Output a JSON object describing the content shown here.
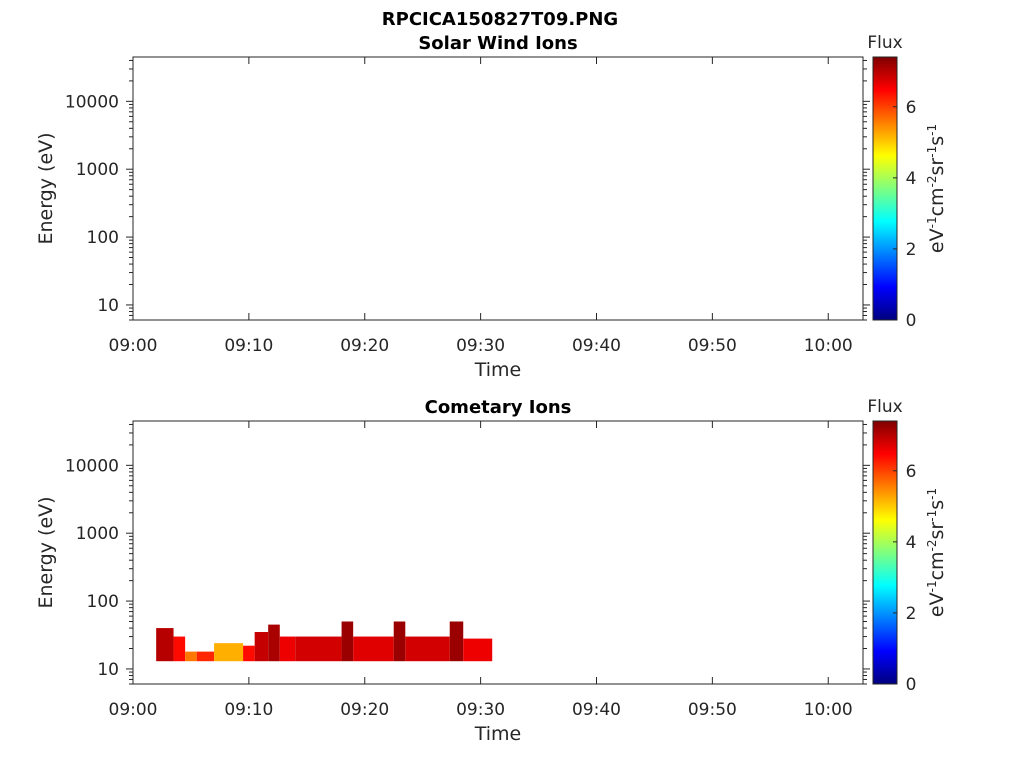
{
  "figure": {
    "title": "RPCICA150827T09.PNG"
  },
  "colormap": {
    "name": "jet",
    "stops": [
      "#00007f",
      "#0000ff",
      "#007fff",
      "#00ffff",
      "#7fff7f",
      "#ffff00",
      "#ff7f00",
      "#ff0000",
      "#7f0000"
    ]
  },
  "chart_data": [
    {
      "type": "heatmap",
      "title": "Solar Wind Ions",
      "xlabel": "Time",
      "ylabel": "Energy (eV)",
      "xticks": [
        "09:00",
        "09:10",
        "09:20",
        "09:30",
        "09:40",
        "09:50",
        "10:00"
      ],
      "xlim": [
        "09:00",
        "10:03"
      ],
      "yscale": "log",
      "ylim": [
        6,
        45000
      ],
      "yticks": [
        10,
        100,
        1000,
        10000
      ],
      "ytick_labels": [
        "10",
        "100",
        "1000",
        "10000"
      ],
      "colorbar": {
        "title": "Flux",
        "label": "eV-1cm-2sr-1s-1",
        "range": [
          0,
          7.4
        ],
        "ticks": [
          "0",
          "2",
          "4",
          "6"
        ]
      },
      "bins": []
    },
    {
      "type": "heatmap",
      "title": "Cometary Ions",
      "xlabel": "Time",
      "ylabel": "Energy (eV)",
      "xticks": [
        "09:00",
        "09:10",
        "09:20",
        "09:30",
        "09:40",
        "09:50",
        "10:00"
      ],
      "xlim": [
        "09:00",
        "10:03"
      ],
      "yscale": "log",
      "ylim": [
        6,
        45000
      ],
      "yticks": [
        10,
        100,
        1000,
        10000
      ],
      "ytick_labels": [
        "10",
        "100",
        "1000",
        "10000"
      ],
      "colorbar": {
        "title": "Flux",
        "label": "eV-1cm-2sr-1s-1",
        "range": [
          0,
          7.4
        ],
        "ticks": [
          "0",
          "2",
          "4",
          "6"
        ]
      },
      "bins": [
        {
          "t0": "09:02:00",
          "t1": "09:03:30",
          "e0": 13,
          "e1": 40,
          "flux": 7.0
        },
        {
          "t0": "09:03:30",
          "t1": "09:04:30",
          "e0": 13,
          "e1": 30,
          "flux": 6.4
        },
        {
          "t0": "09:04:30",
          "t1": "09:05:30",
          "e0": 13,
          "e1": 18,
          "flux": 5.6
        },
        {
          "t0": "09:05:30",
          "t1": "09:07:00",
          "e0": 13,
          "e1": 18,
          "flux": 6.2
        },
        {
          "t0": "09:07:00",
          "t1": "09:09:30",
          "e0": 13,
          "e1": 24,
          "flux": 5.2
        },
        {
          "t0": "09:09:30",
          "t1": "09:10:30",
          "e0": 13,
          "e1": 22,
          "flux": 6.4
        },
        {
          "t0": "09:10:30",
          "t1": "09:11:40",
          "e0": 13,
          "e1": 35,
          "flux": 6.9
        },
        {
          "t0": "09:11:40",
          "t1": "09:12:40",
          "e0": 13,
          "e1": 45,
          "flux": 7.1
        },
        {
          "t0": "09:12:40",
          "t1": "09:14:00",
          "e0": 13,
          "e1": 30,
          "flux": 6.6
        },
        {
          "t0": "09:14:00",
          "t1": "09:18:00",
          "e0": 13,
          "e1": 30,
          "flux": 6.8
        },
        {
          "t0": "09:18:00",
          "t1": "09:19:00",
          "e0": 13,
          "e1": 50,
          "flux": 7.2
        },
        {
          "t0": "09:19:00",
          "t1": "09:22:30",
          "e0": 13,
          "e1": 30,
          "flux": 6.7
        },
        {
          "t0": "09:22:30",
          "t1": "09:23:30",
          "e0": 13,
          "e1": 50,
          "flux": 7.2
        },
        {
          "t0": "09:23:30",
          "t1": "09:27:20",
          "e0": 13,
          "e1": 30,
          "flux": 6.8
        },
        {
          "t0": "09:27:20",
          "t1": "09:28:30",
          "e0": 13,
          "e1": 50,
          "flux": 7.2
        },
        {
          "t0": "09:28:30",
          "t1": "09:31:00",
          "e0": 13,
          "e1": 28,
          "flux": 6.6
        }
      ]
    }
  ]
}
